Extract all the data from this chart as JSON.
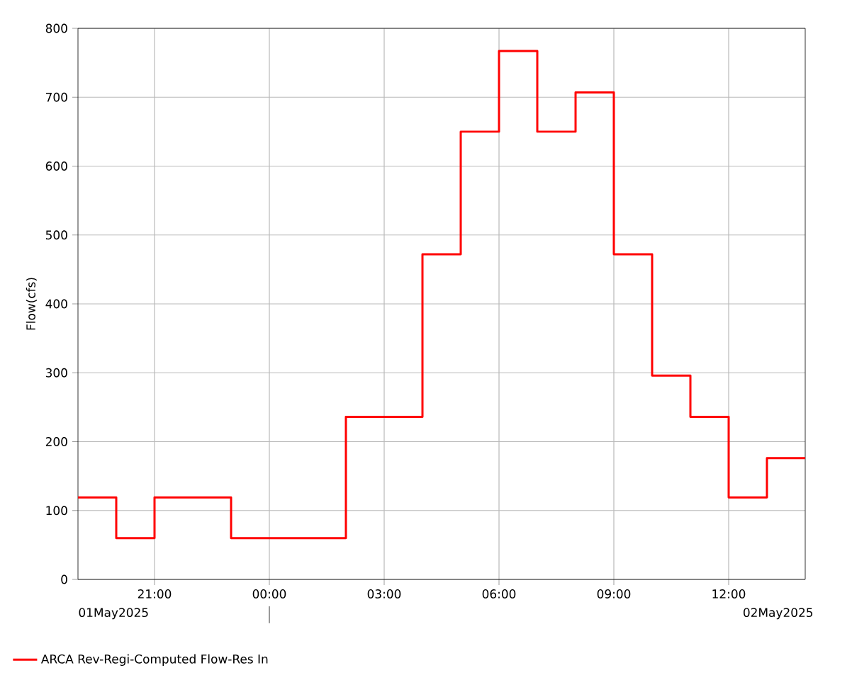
{
  "chart_data": {
    "type": "step",
    "ylabel": "Flow(cfs)",
    "x": [
      "2025-05-01T19:00",
      "2025-05-01T20:00",
      "2025-05-01T21:00",
      "2025-05-01T22:00",
      "2025-05-01T23:00",
      "2025-05-02T00:00",
      "2025-05-02T01:00",
      "2025-05-02T02:00",
      "2025-05-02T03:00",
      "2025-05-02T04:00",
      "2025-05-02T05:00",
      "2025-05-02T06:00",
      "2025-05-02T07:00",
      "2025-05-02T08:00",
      "2025-05-02T09:00",
      "2025-05-02T10:00",
      "2025-05-02T11:00",
      "2025-05-02T12:00",
      "2025-05-02T13:00",
      "2025-05-02T14:00"
    ],
    "series": [
      {
        "name": "ARCA Rev-Regi-Computed Flow-Res In",
        "color": "#ff0000",
        "values": [
          119,
          60,
          119,
          119,
          60,
          60,
          60,
          236,
          236,
          472,
          650,
          767,
          650,
          707,
          472,
          296,
          236,
          119,
          176,
          176
        ]
      }
    ],
    "xlim": [
      "2025-05-01T19:00",
      "2025-05-02T14:00"
    ],
    "xticks": [
      {
        "value": "2025-05-01T21:00",
        "label": "21:00"
      },
      {
        "value": "2025-05-02T00:00",
        "label": "00:00"
      },
      {
        "value": "2025-05-02T03:00",
        "label": "03:00"
      },
      {
        "value": "2025-05-02T06:00",
        "label": "06:00"
      },
      {
        "value": "2025-05-02T09:00",
        "label": "09:00"
      },
      {
        "value": "2025-05-02T12:00",
        "label": "12:00"
      }
    ],
    "ylim": [
      0,
      800
    ],
    "yticks": [
      0,
      100,
      200,
      300,
      400,
      500,
      600,
      700,
      800
    ],
    "annotations": [
      "01May2025",
      "02May2025"
    ],
    "grid": true,
    "legend": "bottom",
    "line_style": "solid",
    "marker": "none"
  }
}
